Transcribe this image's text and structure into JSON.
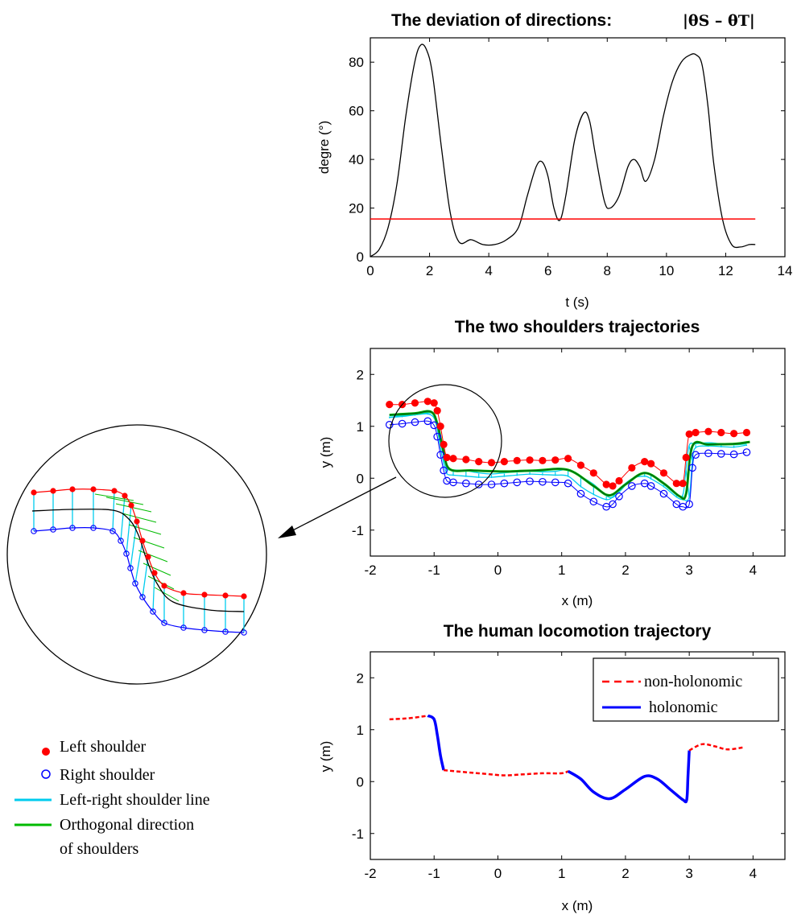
{
  "chart_data": [
    {
      "type": "line",
      "title": "The deviation of directions:",
      "title_formula": "|θS – θT|",
      "xlabel": "t (s)",
      "ylabel": "degre (°)",
      "xlim": [
        0,
        14
      ],
      "ylim": [
        0,
        90
      ],
      "xticks": [
        "0",
        "2",
        "4",
        "6",
        "8",
        "10",
        "12",
        "14"
      ],
      "yticks": [
        "0",
        "20",
        "40",
        "60",
        "80"
      ],
      "grid": false,
      "series": [
        {
          "color": "#000000",
          "x": [
            0,
            0.3,
            0.6,
            0.9,
            1.2,
            1.5,
            1.7,
            1.9,
            2.1,
            2.4,
            2.7,
            3.0,
            3.4,
            3.8,
            4.2,
            4.6,
            5.0,
            5.3,
            5.6,
            5.8,
            6.0,
            6.2,
            6.4,
            6.6,
            6.9,
            7.2,
            7.4,
            7.6,
            7.9,
            8.1,
            8.4,
            8.7,
            8.9,
            9.1,
            9.3,
            9.6,
            9.9,
            10.2,
            10.5,
            10.8,
            11.0,
            11.2,
            11.4,
            11.6,
            11.9,
            12.2,
            12.5,
            12.8,
            13.0
          ],
          "y": [
            0,
            3,
            12,
            30,
            58,
            80,
            87,
            85,
            75,
            45,
            18,
            6,
            7,
            5,
            5,
            7,
            12,
            25,
            37,
            39,
            33,
            20,
            15,
            25,
            48,
            59,
            56,
            42,
            23,
            20,
            25,
            37,
            40,
            37,
            31,
            40,
            58,
            72,
            80,
            83,
            83,
            79,
            62,
            38,
            15,
            5,
            4,
            5,
            5
          ]
        },
        {
          "color": "#ff0000",
          "x": [
            0,
            13.0
          ],
          "y": [
            15.5,
            15.5
          ]
        }
      ]
    },
    {
      "type": "scatter",
      "title": "The two shoulders trajectories",
      "xlabel": "x (m)",
      "ylabel": "y (m)",
      "xlim": [
        -2,
        4.5
      ],
      "ylim": [
        -1.5,
        2.5
      ],
      "xticks": [
        "-2",
        "-1",
        "0",
        "1",
        "2",
        "3",
        "4"
      ],
      "yticks": [
        "-1",
        "0",
        "1",
        "2"
      ],
      "grid": false,
      "series": [
        {
          "marker": "filled-dot",
          "color": "#ff0000",
          "x": [
            -1.7,
            -1.5,
            -1.3,
            -1.1,
            -1.0,
            -0.95,
            -0.9,
            -0.85,
            -0.8,
            -0.7,
            -0.5,
            -0.3,
            -0.1,
            0.1,
            0.3,
            0.5,
            0.7,
            0.9,
            1.1,
            1.3,
            1.5,
            1.7,
            1.8,
            1.9,
            2.1,
            2.3,
            2.4,
            2.6,
            2.8,
            2.9,
            2.95,
            3.0,
            3.1,
            3.3,
            3.5,
            3.7,
            3.9
          ],
          "y": [
            1.42,
            1.42,
            1.45,
            1.48,
            1.45,
            1.3,
            1.0,
            0.65,
            0.4,
            0.38,
            0.36,
            0.32,
            0.3,
            0.32,
            0.34,
            0.35,
            0.34,
            0.35,
            0.38,
            0.25,
            0.1,
            -0.12,
            -0.15,
            -0.05,
            0.2,
            0.32,
            0.28,
            0.1,
            -0.1,
            -0.1,
            0.4,
            0.85,
            0.88,
            0.9,
            0.88,
            0.86,
            0.88
          ]
        },
        {
          "marker": "open-circle",
          "color": "#0000ff",
          "x": [
            -1.7,
            -1.5,
            -1.3,
            -1.1,
            -1.0,
            -0.95,
            -0.9,
            -0.85,
            -0.8,
            -0.7,
            -0.5,
            -0.3,
            -0.1,
            0.1,
            0.3,
            0.5,
            0.7,
            0.9,
            1.1,
            1.3,
            1.5,
            1.7,
            1.8,
            1.9,
            2.1,
            2.3,
            2.4,
            2.6,
            2.8,
            2.9,
            3.0,
            3.05,
            3.1,
            3.3,
            3.5,
            3.7,
            3.9
          ],
          "y": [
            1.03,
            1.05,
            1.08,
            1.1,
            1.02,
            0.8,
            0.45,
            0.15,
            -0.05,
            -0.08,
            -0.1,
            -0.12,
            -0.12,
            -0.1,
            -0.08,
            -0.06,
            -0.07,
            -0.08,
            -0.1,
            -0.3,
            -0.45,
            -0.55,
            -0.5,
            -0.35,
            -0.15,
            -0.1,
            -0.15,
            -0.3,
            -0.5,
            -0.55,
            -0.5,
            0.2,
            0.45,
            0.48,
            0.47,
            0.46,
            0.5
          ]
        },
        {
          "marker": "line",
          "color": "#00aa66",
          "x": [
            -1.7,
            -1.3,
            -1.05,
            -0.95,
            -0.85,
            -0.75,
            -0.4,
            0.1,
            0.6,
            1.1,
            1.5,
            1.75,
            2.0,
            2.3,
            2.6,
            2.85,
            2.95,
            3.05,
            3.3,
            3.7,
            3.95
          ],
          "y": [
            1.22,
            1.25,
            1.28,
            1.05,
            0.5,
            0.17,
            0.15,
            0.13,
            0.15,
            0.16,
            -0.15,
            -0.33,
            -0.12,
            0.1,
            -0.1,
            -0.35,
            -0.3,
            0.62,
            0.65,
            0.66,
            0.7
          ]
        }
      ]
    },
    {
      "type": "scatter",
      "title": "The human locomotion trajectory",
      "xlabel": "x (m)",
      "ylabel": "y (m)",
      "xlim": [
        -2,
        4.5
      ],
      "ylim": [
        -1.5,
        2.5
      ],
      "xticks": [
        "-2",
        "-1",
        "0",
        "1",
        "2",
        "3",
        "4"
      ],
      "yticks": [
        "-1",
        "0",
        "1",
        "2"
      ],
      "grid": false,
      "legend_position": "top-right",
      "series": [
        {
          "name": "non-holonomic",
          "style": "dashed",
          "color": "#ff0000",
          "x": [
            -1.7,
            -1.4,
            -1.15,
            -1.1
          ],
          "y": [
            1.2,
            1.22,
            1.26,
            1.27
          ]
        },
        {
          "name": "holonomic",
          "style": "solid",
          "color": "#0000ff",
          "x": [
            -1.1,
            -1.0,
            -0.95,
            -0.9,
            -0.85
          ],
          "y": [
            1.27,
            1.2,
            0.9,
            0.5,
            0.22
          ]
        },
        {
          "name": "non-holonomic",
          "style": "dashed",
          "color": "#ff0000",
          "x": [
            -0.85,
            -0.5,
            -0.2,
            0.1,
            0.4,
            0.7,
            1.0,
            1.1
          ],
          "y": [
            0.22,
            0.18,
            0.15,
            0.12,
            0.14,
            0.16,
            0.16,
            0.2
          ]
        },
        {
          "name": "holonomic",
          "style": "solid",
          "color": "#0000ff",
          "x": [
            1.1,
            1.3,
            1.5,
            1.75,
            2.0,
            2.3,
            2.5,
            2.7,
            2.9,
            2.96,
            2.98,
            3.0
          ],
          "y": [
            0.2,
            0.05,
            -0.2,
            -0.33,
            -0.15,
            0.1,
            0.05,
            -0.15,
            -0.35,
            -0.35,
            0.1,
            0.6
          ]
        },
        {
          "name": "non-holonomic",
          "style": "dashed",
          "color": "#ff0000",
          "x": [
            3.0,
            3.2,
            3.4,
            3.6,
            3.85
          ],
          "y": [
            0.6,
            0.72,
            0.68,
            0.62,
            0.66
          ]
        }
      ]
    }
  ],
  "zoom_legend": {
    "items": [
      {
        "label": "Left shoulder",
        "color": "#ff0000",
        "marker": "filled-dot"
      },
      {
        "label": "Right shoulder",
        "color": "#0000ff",
        "marker": "open-circle"
      },
      {
        "label": "Left-right shoulder line",
        "color": "#00ccee",
        "marker": "line"
      },
      {
        "label": "Orthogonal direction",
        "label2": "of shoulders",
        "color": "#00bb00",
        "marker": "line"
      }
    ]
  }
}
